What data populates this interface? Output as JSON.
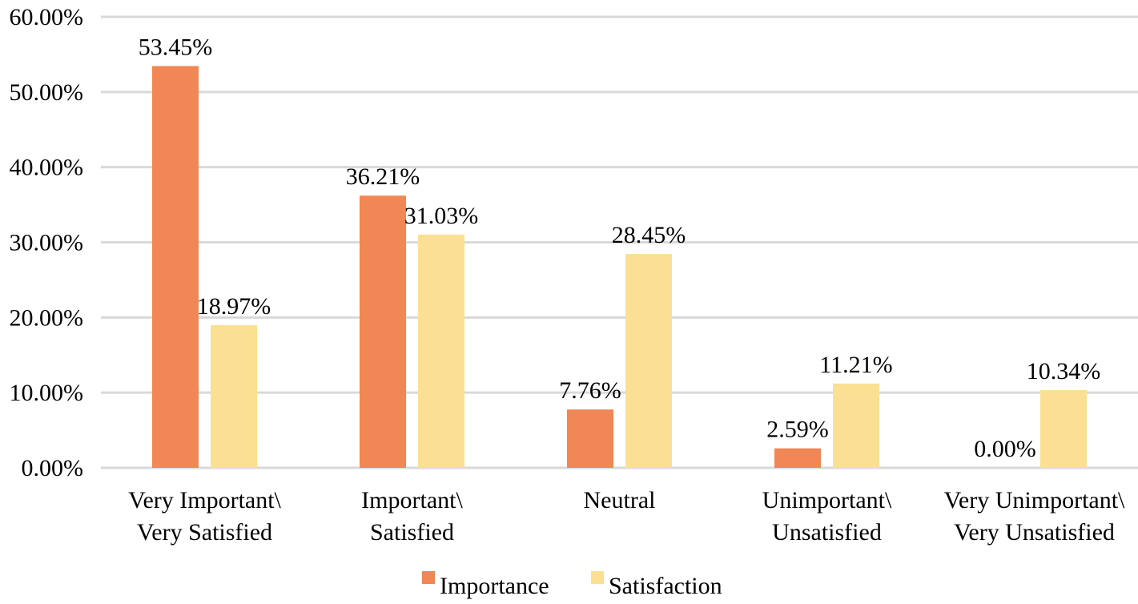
{
  "chart_data": {
    "type": "bar",
    "title": "",
    "xlabel": "",
    "ylabel": "",
    "ylim": [
      0,
      60
    ],
    "yticks": [
      "0.00%",
      "10.00%",
      "20.00%",
      "30.00%",
      "40.00%",
      "50.00%",
      "60.00%"
    ],
    "grid": true,
    "legend_position": "bottom",
    "categories": [
      [
        "Very Important\\",
        "Very Satisfied"
      ],
      [
        "Important\\",
        "Satisfied"
      ],
      [
        "Neutral"
      ],
      [
        "Unimportant\\",
        "Unsatisfied"
      ],
      [
        "Very Unimportant\\",
        "Very Unsatisfied"
      ]
    ],
    "series": [
      {
        "name": "Importance",
        "color": "#f08754",
        "values": [
          53.45,
          36.21,
          7.76,
          2.59,
          0.0
        ],
        "labels": [
          "53.45%",
          "36.21%",
          "7.76%",
          "2.59%",
          "0.00%"
        ]
      },
      {
        "name": "Satisfaction",
        "color": "#fbdf92",
        "values": [
          18.97,
          31.03,
          28.45,
          11.21,
          10.34
        ],
        "labels": [
          "18.97%",
          "31.03%",
          "28.45%",
          "11.21%",
          "10.34%"
        ]
      }
    ]
  }
}
